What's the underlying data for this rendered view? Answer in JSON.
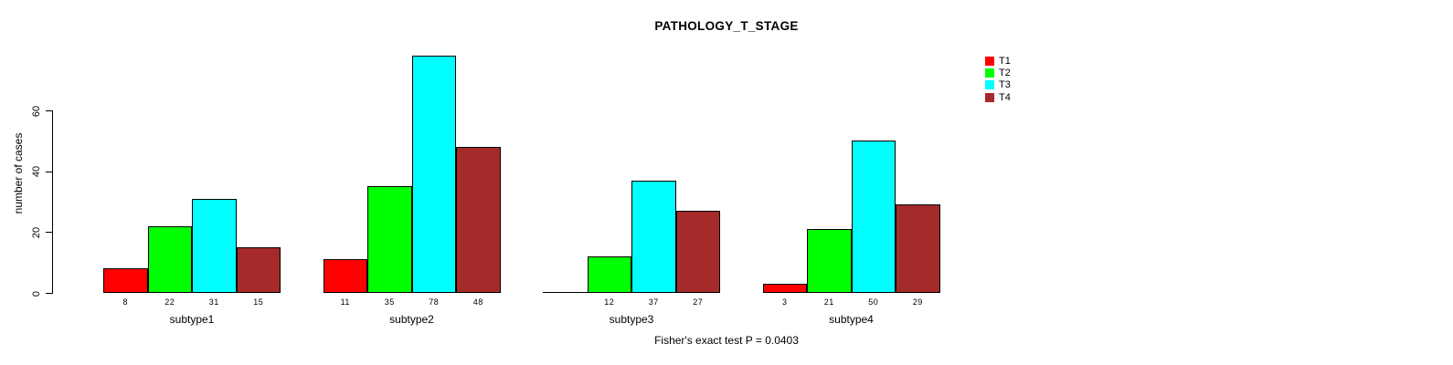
{
  "chart_data": {
    "type": "bar",
    "title": "PATHOLOGY_T_STAGE",
    "xlabel": "",
    "ylabel": "number of cases",
    "categories": [
      "subtype1",
      "subtype2",
      "subtype3",
      "subtype4"
    ],
    "series": [
      {
        "name": "T1",
        "color": "#ff0000",
        "values": [
          8,
          11,
          0,
          3
        ]
      },
      {
        "name": "T2",
        "color": "#00ff00",
        "values": [
          22,
          35,
          12,
          21
        ]
      },
      {
        "name": "T3",
        "color": "#00ffff",
        "values": [
          31,
          78,
          37,
          50
        ]
      },
      {
        "name": "T4",
        "color": "#a52a2a",
        "values": [
          15,
          48,
          27,
          29
        ]
      }
    ],
    "bar_value_labels": [
      [
        "8",
        "22",
        "31",
        "15"
      ],
      [
        "11",
        "35",
        "78",
        "48"
      ],
      [
        "",
        "12",
        "37",
        "27"
      ],
      [
        "3",
        "21",
        "50",
        "29"
      ]
    ],
    "yticks": [
      0,
      20,
      40,
      60
    ],
    "ylim": [
      0,
      79
    ],
    "grid": false,
    "legend_position": "top-right",
    "legend_entries": [
      "T1",
      "T2",
      "T3",
      "T4"
    ],
    "annotation": "Fisher's exact test P = 0.0403",
    "axis_color": "#000000",
    "background_color": "#ffffff"
  }
}
